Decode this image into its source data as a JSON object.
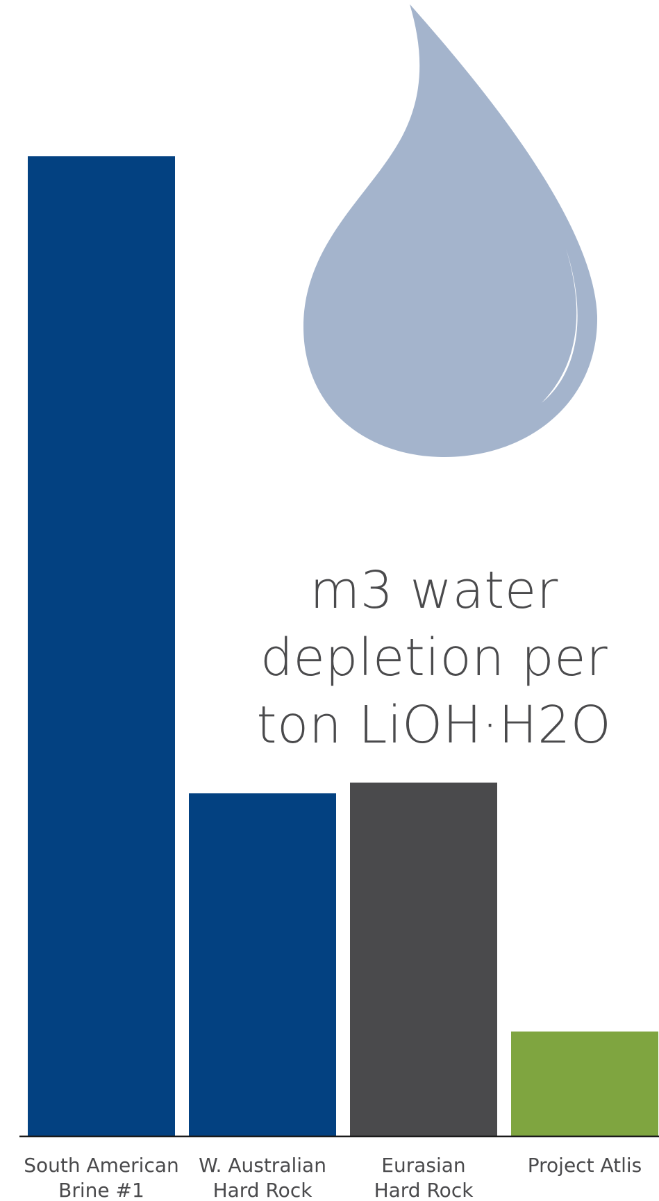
{
  "chart_data": {
    "type": "bar",
    "title_lines": [
      "m3 water",
      "depletion per",
      "ton LiOH·H2O"
    ],
    "categories": [
      [
        "South American",
        "Brine #1"
      ],
      [
        "W. Australian",
        "Hard Rock"
      ],
      [
        "Eurasian",
        "Hard Rock"
      ],
      [
        "Project Atlis"
      ]
    ],
    "values": [
      100,
      35,
      36.1,
      10.7
    ],
    "colors": [
      "#034181",
      "#034181",
      "#4a4a4c",
      "#7fa540"
    ],
    "ylim": [
      0,
      100
    ],
    "grid": false,
    "legend": "none",
    "decoration": "water-drop-icon",
    "drop_color": "#a4b4cc"
  }
}
